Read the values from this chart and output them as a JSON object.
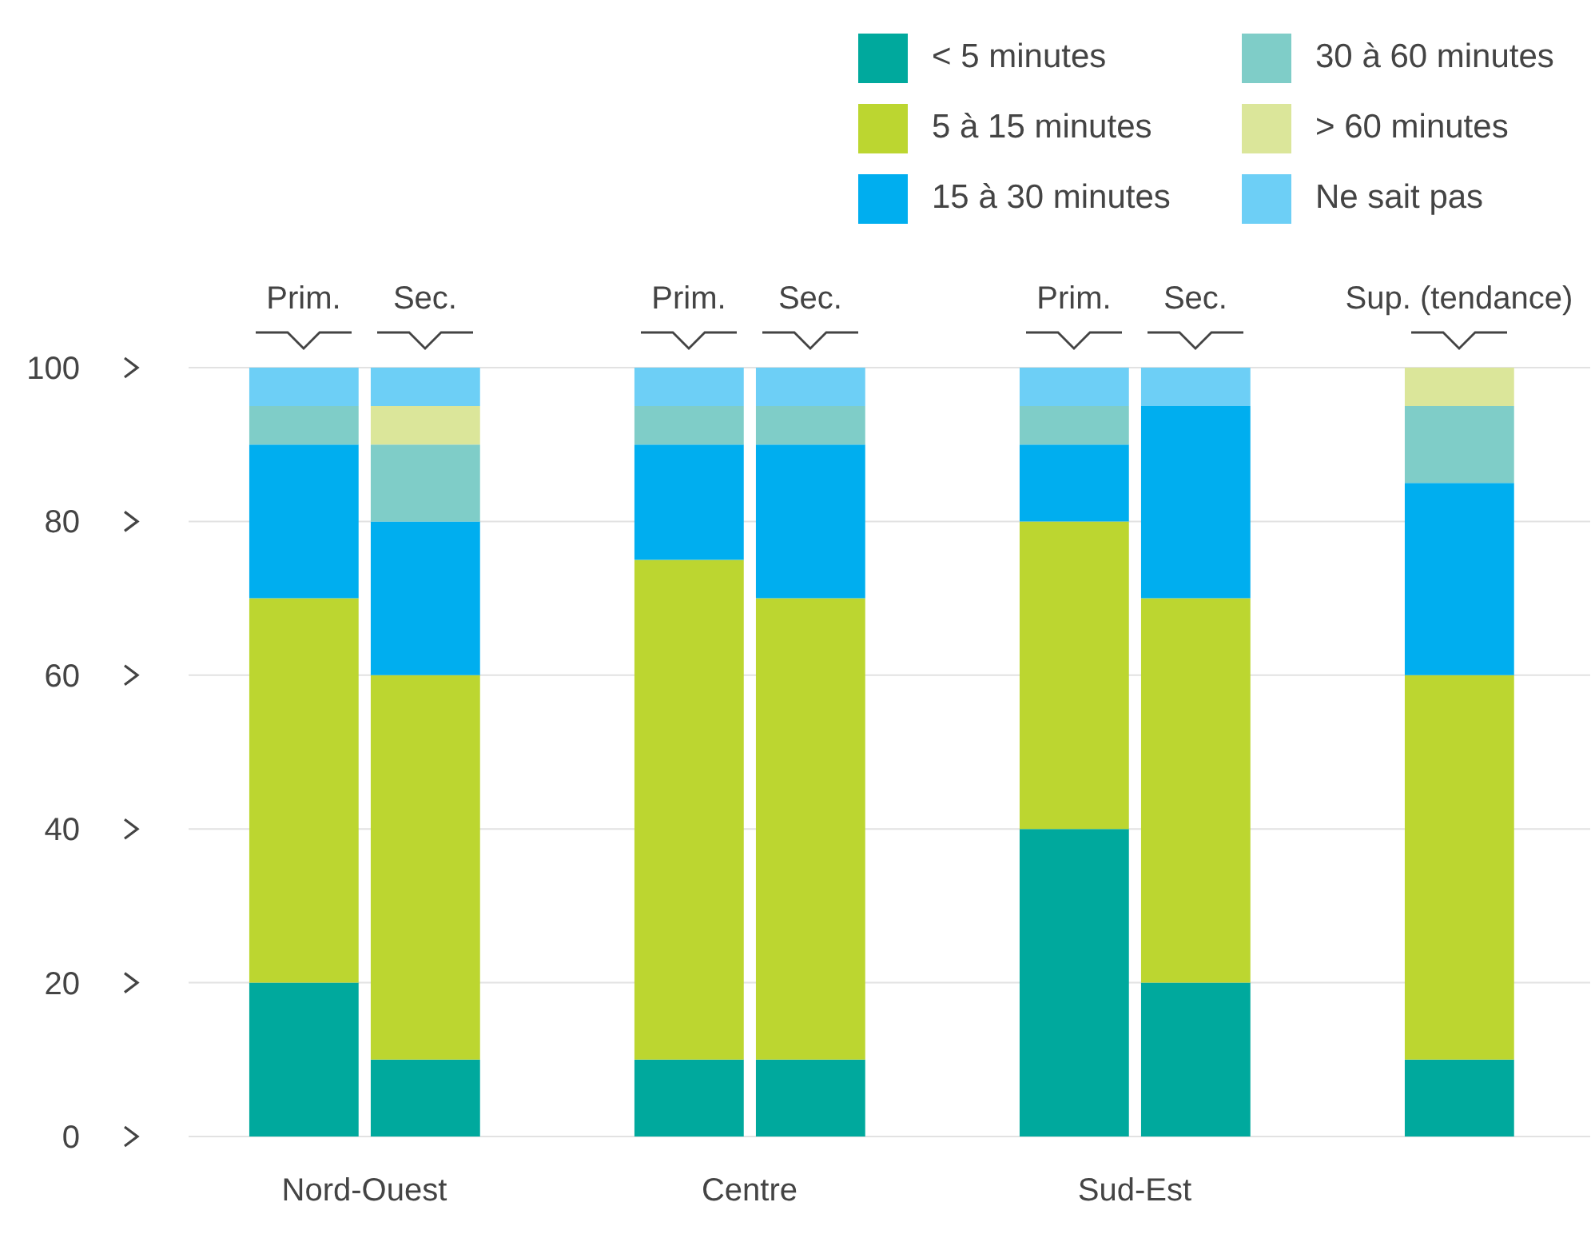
{
  "chart_data": {
    "type": "bar",
    "stacked": true,
    "categories": [
      "Prim.",
      "Sec.",
      "Prim.",
      "Sec.",
      "Prim.",
      "Sec.",
      "Sup. (tendance)"
    ],
    "series": [
      {
        "name": "< 5 minutes",
        "color": "#00a99d",
        "values": [
          20,
          10,
          10,
          10,
          40,
          20,
          10
        ]
      },
      {
        "name": "5 à 15 minutes",
        "color": "#bcd630",
        "values": [
          50,
          50,
          65,
          60,
          40,
          50,
          50
        ]
      },
      {
        "name": "15 à 30 minutes",
        "color": "#00aeef",
        "values": [
          20,
          20,
          15,
          20,
          10,
          25,
          25
        ]
      },
      {
        "name": "30 à 60 minutes",
        "color": "#7fcdc8",
        "values": [
          5,
          10,
          5,
          5,
          5,
          0,
          10
        ]
      },
      {
        "name": "> 60 minutes",
        "color": "#dbe69a",
        "values": [
          0,
          5,
          0,
          0,
          0,
          0,
          5
        ]
      },
      {
        "name": "Ne sait pas",
        "color": "#6dcff6",
        "values": [
          5,
          5,
          5,
          5,
          5,
          5,
          0
        ]
      }
    ],
    "ylim": [
      0,
      100
    ],
    "yticks": [
      0,
      20,
      40,
      60,
      80,
      100
    ],
    "grid": "y",
    "legend": "top right",
    "annotations": [
      "Nord-Ouest",
      "Centre",
      "Sud-Est"
    ]
  }
}
